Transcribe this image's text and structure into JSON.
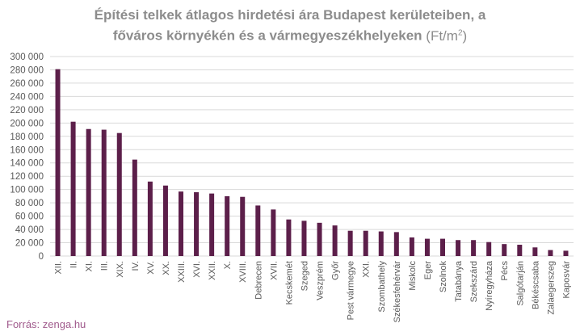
{
  "title": {
    "line1": "Építési telkek átlagos hirdetési ára Budapest kerületeiben, a",
    "line2": "főváros környékén és a vármegyeszékhelyeken",
    "unit_prefix": "(Ft/m",
    "unit_sup": "2",
    "unit_suffix": ")"
  },
  "source": "Forrás: zenga.hu",
  "colors": {
    "bar": "#5c1f4a",
    "grid": "#d9d9d9",
    "axis_text": "#595959",
    "source": "#a05a8c"
  },
  "chart_data": {
    "type": "bar",
    "title": "Építési telkek átlagos hirdetési ára Budapest kerületeiben, a főváros környékén és a vármegyeszékhelyeken (Ft/m2)",
    "xlabel": "",
    "ylabel": "",
    "ylim": [
      0,
      300000
    ],
    "yticks": [
      0,
      20000,
      40000,
      60000,
      80000,
      100000,
      120000,
      140000,
      160000,
      180000,
      200000,
      220000,
      240000,
      260000,
      280000,
      300000
    ],
    "ytick_labels": [
      "0",
      "20 000",
      "40 000",
      "60 000",
      "80 000",
      "100 000",
      "120 000",
      "140 000",
      "160 000",
      "180 000",
      "200 000",
      "220 000",
      "240 000",
      "260 000",
      "280 000",
      "300 000"
    ],
    "grid": true,
    "categories": [
      "XII.",
      "II.",
      "XI.",
      "III.",
      "XIX.",
      "IV.",
      "XV.",
      "XX.",
      "XXIII.",
      "XVI.",
      "XXII.",
      "X.",
      "XVIII.",
      "Debrecen",
      "XVII.",
      "Kecskemét",
      "Szeged",
      "Veszprém",
      "Győr",
      "Pest vármegye",
      "XXI.",
      "Szombathely",
      "Székesfehérvár",
      "Miskolc",
      "Eger",
      "Szolnok",
      "Tatabánya",
      "Szekszárd",
      "Nyíregyháza",
      "Pécs",
      "Salgótarján",
      "Békéscsaba",
      "Zalaegerszeg",
      "Kaposvár"
    ],
    "values": [
      281000,
      202000,
      191000,
      190000,
      185000,
      145000,
      112000,
      106000,
      97000,
      96000,
      94000,
      90000,
      89000,
      76000,
      70000,
      55000,
      53000,
      50000,
      46000,
      38000,
      38000,
      37000,
      36000,
      28000,
      26000,
      26000,
      24000,
      24000,
      21000,
      18000,
      17000,
      13000,
      9000,
      8000
    ]
  }
}
